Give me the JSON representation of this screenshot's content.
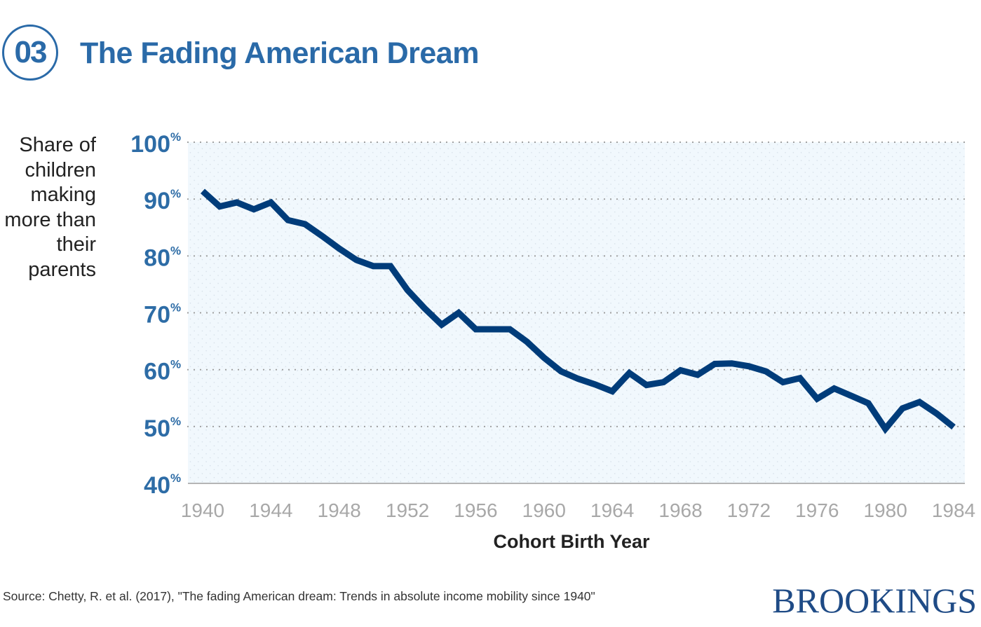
{
  "header": {
    "number": "03",
    "title": "The Fading American Dream"
  },
  "source": "Source: Chetty, R. et al. (2017), \"The fading American dream: Trends in absolute income mobility since 1940\"",
  "logo": "BROOKINGS",
  "colors": {
    "title": "#2a6aa8",
    "line": "#003c7a",
    "y_ticks": "#2d6ca6",
    "x_ticks": "#a8a8a8",
    "plot_bg": "#f1f8fd"
  },
  "chart_data": {
    "type": "line",
    "title": "The Fading American Dream",
    "xlabel": "Cohort Birth Year",
    "ylabel": "Share of children making more than their parents",
    "ylabel_lines": [
      "Share of",
      "children",
      "making",
      "more than",
      "their",
      "parents"
    ],
    "xlim": [
      1940,
      1984
    ],
    "ylim": [
      40,
      100
    ],
    "x_ticks": [
      "1940",
      "1944",
      "1948",
      "1952",
      "1956",
      "1960",
      "1964",
      "1968",
      "1972",
      "1976",
      "1980",
      "1984"
    ],
    "y_ticks": [
      {
        "value": 100,
        "label": "100",
        "unit": "%"
      },
      {
        "value": 90,
        "label": "90",
        "unit": "%"
      },
      {
        "value": 80,
        "label": "80",
        "unit": "%"
      },
      {
        "value": 70,
        "label": "70",
        "unit": "%"
      },
      {
        "value": 60,
        "label": "60",
        "unit": "%"
      },
      {
        "value": 50,
        "label": "50",
        "unit": "%"
      },
      {
        "value": 40,
        "label": "40",
        "unit": "%"
      }
    ],
    "grid": "horizontal dotted",
    "x": [
      1940,
      1941,
      1942,
      1943,
      1944,
      1945,
      1946,
      1947,
      1948,
      1949,
      1950,
      1951,
      1952,
      1953,
      1954,
      1955,
      1956,
      1957,
      1958,
      1959,
      1960,
      1961,
      1962,
      1963,
      1964,
      1965,
      1966,
      1967,
      1968,
      1969,
      1970,
      1971,
      1972,
      1973,
      1974,
      1975,
      1976,
      1977,
      1978,
      1979,
      1980,
      1981,
      1982,
      1983,
      1984
    ],
    "y": [
      91.4,
      88.7,
      89.4,
      88.2,
      89.4,
      86.3,
      85.6,
      83.5,
      81.3,
      79.3,
      78.2,
      78.2,
      74.0,
      70.8,
      67.9,
      70.0,
      67.1,
      67.1,
      67.1,
      64.9,
      62.1,
      59.7,
      58.4,
      57.4,
      56.2,
      59.4,
      57.3,
      57.8,
      59.9,
      59.1,
      61.0,
      61.1,
      60.6,
      59.7,
      57.8,
      58.5,
      54.9,
      56.7,
      55.4,
      54.1,
      49.6,
      53.2,
      54.3,
      52.3,
      49.9
    ]
  }
}
